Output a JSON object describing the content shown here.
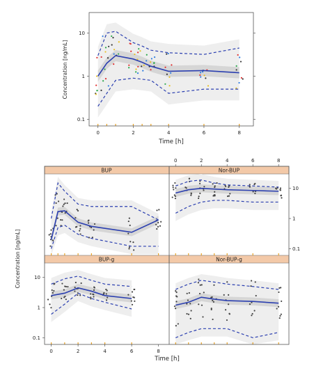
{
  "colors": {
    "median_line": "#2b3fb0",
    "pi_dashed": "#2b3fb0",
    "band_outer": "#eeeeee",
    "band_median": "#cfcfcf",
    "strip_header": "#f3c9a8",
    "rug_tick": "#e8a020",
    "obs_top": [
      "#e03030",
      "#2f7de0",
      "#2aa84a",
      "#e8c020",
      "#333333"
    ],
    "obs_bottom": "#444444"
  },
  "chart_data": [
    {
      "type": "scatter",
      "panel": "top",
      "title": "",
      "xlabel": "Time [h]",
      "ylabel": "Concentration [ng/mL]",
      "xlim": [
        -0.5,
        8.8
      ],
      "ylim": [
        0.07,
        30
      ],
      "log_y": true,
      "xticks": [
        "0",
        "2",
        "4",
        "6",
        "8"
      ],
      "yticks": [
        "0.1",
        "1",
        "10"
      ],
      "grid": false,
      "x": [
        0,
        0.5,
        1,
        2,
        2.5,
        3,
        4,
        6,
        8
      ],
      "series": [
        {
          "role": "median",
          "values": [
            1.0,
            2.0,
            3.0,
            2.5,
            2.1,
            1.7,
            1.3,
            1.35,
            1.2
          ]
        },
        {
          "role": "upper",
          "values": [
            3.0,
            10.0,
            11.0,
            6.0,
            5.0,
            4.0,
            3.5,
            3.2,
            4.5
          ]
        },
        {
          "role": "lower",
          "values": [
            0.2,
            0.4,
            0.8,
            0.9,
            0.85,
            0.8,
            0.4,
            0.5,
            0.5
          ]
        }
      ]
    },
    {
      "type": "scatter",
      "panel": "BUP",
      "title": "BUP",
      "xlim": [
        -0.5,
        8.8
      ],
      "ylim": [
        0.06,
        30
      ],
      "log_y": true,
      "x": [
        0,
        0.5,
        1,
        2,
        3,
        6,
        8
      ],
      "series": [
        {
          "role": "median",
          "values": [
            0.2,
            1.7,
            1.8,
            0.75,
            0.55,
            0.35,
            0.9
          ]
        },
        {
          "role": "upper",
          "values": [
            1.0,
            15,
            8,
            3.0,
            2.5,
            2.5,
            0.9
          ]
        },
        {
          "role": "lower",
          "values": [
            0.1,
            0.5,
            0.6,
            0.3,
            0.22,
            0.12,
            0.12
          ]
        }
      ]
    },
    {
      "type": "scatter",
      "panel": "Nor-BUP",
      "title": "Nor-BUP",
      "xlim": [
        -0.5,
        8.8
      ],
      "ylim": [
        0.06,
        30
      ],
      "log_y": true,
      "xticks": [
        "0",
        "2",
        "4",
        "6",
        "8"
      ],
      "yticks": [
        "0.1",
        "1",
        "10"
      ],
      "x": [
        0,
        1,
        2,
        3,
        4,
        6,
        8
      ],
      "series": [
        {
          "role": "median",
          "values": [
            7,
            9,
            10,
            9.5,
            9,
            8.5,
            8
          ]
        },
        {
          "role": "upper",
          "values": [
            12,
            17,
            19,
            15,
            13,
            12,
            11
          ]
        },
        {
          "role": "lower",
          "values": [
            1.5,
            2.5,
            3.5,
            4,
            4,
            3.5,
            3.5
          ]
        }
      ]
    },
    {
      "type": "scatter",
      "panel": "BUP-g",
      "title": "BUP-g",
      "xlim": [
        -0.5,
        8.8
      ],
      "ylim": [
        0.06,
        30
      ],
      "log_y": true,
      "xticks": [
        "0",
        "2",
        "4",
        "6",
        "8"
      ],
      "yticks": [
        "0.1",
        "1",
        "10"
      ],
      "x": [
        0,
        1,
        2,
        3,
        4,
        6
      ],
      "series": [
        {
          "role": "median",
          "values": [
            2.5,
            3.0,
            4.5,
            3.5,
            2.5,
            2.0
          ]
        },
        {
          "role": "upper",
          "values": [
            6,
            9,
            11,
            8,
            6,
            5
          ]
        },
        {
          "role": "lower",
          "values": [
            0.6,
            1.3,
            3,
            2,
            1.5,
            0.9
          ]
        }
      ]
    },
    {
      "type": "scatter",
      "panel": "Nor-BUP-g",
      "title": "Nor-BUP-g",
      "xlim": [
        -0.5,
        8.8
      ],
      "ylim": [
        0.06,
        30
      ],
      "log_y": true,
      "x": [
        0,
        1,
        2,
        3,
        4,
        6,
        8
      ],
      "series": [
        {
          "role": "median",
          "values": [
            1.2,
            1.5,
            2.2,
            1.9,
            1.7,
            1.6,
            1.4
          ]
        },
        {
          "role": "upper",
          "values": [
            4,
            6,
            8,
            7,
            6,
            5,
            4
          ]
        },
        {
          "role": "lower",
          "values": [
            0.1,
            0.15,
            0.2,
            0.2,
            0.2,
            0.1,
            0.15
          ]
        }
      ]
    }
  ],
  "shared_axis": {
    "xlabel": "Time [h]",
    "ylabel": "Concentration [ng/mL]",
    "xticks": [
      "0",
      "2",
      "4",
      "6",
      "8"
    ],
    "yticks": [
      "0.1",
      "1",
      "10"
    ]
  }
}
